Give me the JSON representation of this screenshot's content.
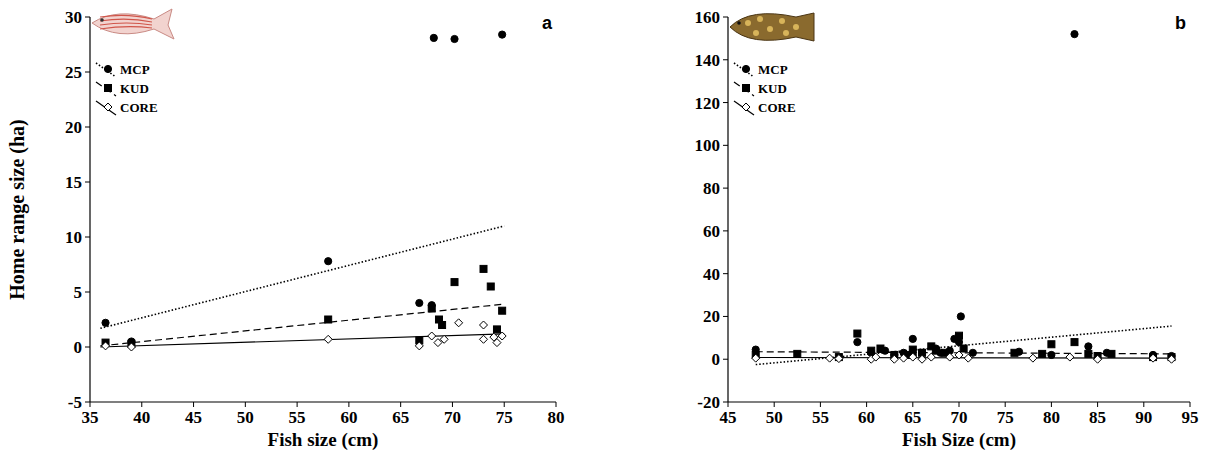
{
  "chart_data": [
    {
      "type": "scatter",
      "title": "a",
      "xlabel": "Fish size (cm)",
      "ylabel": "Home range size (ha)",
      "xlim": [
        35,
        80
      ],
      "xticks": [
        35,
        40,
        45,
        50,
        55,
        60,
        65,
        70,
        75,
        80
      ],
      "ylim": [
        -5,
        30
      ],
      "yticks": [
        -5,
        0,
        5,
        10,
        15,
        20,
        25,
        30
      ],
      "legend": "upper left",
      "series": [
        {
          "name": "MCP",
          "color": "#000000",
          "marker": "circle",
          "line_style": "dotted",
          "x": [
            36.5,
            39,
            58,
            66.8,
            68,
            68.2,
            70.2,
            74.8
          ],
          "values": [
            2.2,
            0.5,
            7.8,
            4.0,
            3.8,
            28.1,
            28.0,
            28.4
          ],
          "trend": {
            "x": [
              36,
              75
            ],
            "values": [
              1.7,
              11.0
            ]
          }
        },
        {
          "name": "KUD",
          "color": "#000000",
          "marker": "square",
          "line_style": "dashed",
          "x": [
            36.5,
            39,
            58,
            66.8,
            68,
            68.7,
            69,
            70.2,
            73,
            73.7,
            74.3,
            74.8
          ],
          "values": [
            0.4,
            0.3,
            2.5,
            0.6,
            3.5,
            2.5,
            2.0,
            5.9,
            7.1,
            5.5,
            1.6,
            3.3
          ],
          "trend": {
            "x": [
              36,
              75
            ],
            "values": [
              0.1,
              3.9
            ]
          }
        },
        {
          "name": "CORE",
          "color": "#000000",
          "marker": "open-diamond",
          "line_style": "solid",
          "x": [
            36.5,
            39,
            58,
            66.8,
            68,
            68.6,
            69.2,
            70.6,
            73,
            73,
            74,
            74.3,
            74.8
          ],
          "values": [
            0.1,
            0.0,
            0.7,
            0.1,
            1.0,
            0.4,
            0.7,
            2.2,
            0.7,
            2.0,
            0.9,
            0.4,
            1.0
          ],
          "trend": {
            "x": [
              36,
              75
            ],
            "values": [
              0.0,
              1.2
            ]
          }
        }
      ]
    },
    {
      "type": "scatter",
      "title": "b",
      "xlabel": "Fish Size (cm)",
      "xlim": [
        45,
        95
      ],
      "xticks": [
        45,
        50,
        55,
        60,
        65,
        70,
        75,
        80,
        85,
        90,
        95
      ],
      "ylim": [
        -20,
        160
      ],
      "yticks": [
        -20,
        0,
        20,
        40,
        60,
        80,
        100,
        120,
        140,
        160
      ],
      "legend": "upper left",
      "series": [
        {
          "name": "MCP",
          "color": "#000000",
          "marker": "circle",
          "line_style": "dotted",
          "x": [
            48,
            59,
            60.5,
            62,
            63,
            64,
            65,
            65,
            66,
            67.5,
            68,
            69,
            69.5,
            70,
            70.2,
            71.5,
            76.5,
            80,
            82.5,
            84,
            86,
            91,
            93
          ],
          "values": [
            4.5,
            8,
            3,
            4,
            2,
            3,
            9.5,
            2,
            3,
            5,
            3,
            4,
            9.5,
            8,
            20,
            3,
            3.5,
            2,
            152,
            6,
            3,
            2,
            1.5
          ],
          "trend": {
            "x": [
              48,
              93
            ],
            "values": [
              -2.5,
              15.5
            ]
          }
        },
        {
          "name": "KUD",
          "color": "#000000",
          "marker": "square",
          "line_style": "dashed",
          "x": [
            48,
            52.5,
            57,
            59,
            60.5,
            61.5,
            63,
            64.5,
            65,
            66,
            67,
            67.5,
            68.5,
            70,
            70.5,
            76,
            79,
            80,
            82.5,
            84,
            85,
            86.5,
            91,
            93
          ],
          "values": [
            2,
            2.5,
            1,
            12,
            4,
            5,
            2,
            2,
            4.5,
            3,
            6,
            4,
            3,
            11,
            5,
            3,
            2.5,
            7,
            8,
            2.5,
            1.5,
            2.5,
            1,
            1
          ],
          "trend": {
            "x": [
              48,
              93
            ],
            "values": [
              3.5,
              2.5
            ]
          }
        },
        {
          "name": "CORE",
          "color": "#000000",
          "marker": "open-diamond",
          "line_style": "solid",
          "x": [
            48,
            56,
            57,
            60.5,
            61,
            63,
            64,
            65,
            66,
            67,
            69,
            70,
            71,
            78,
            82,
            85,
            91,
            93
          ],
          "values": [
            0.5,
            0.5,
            0.3,
            0,
            1,
            0,
            0.5,
            1,
            0,
            1,
            1,
            2,
            0.5,
            0.5,
            1,
            0,
            0.5,
            0
          ],
          "trend": {
            "x": [
              48,
              93
            ],
            "values": [
              0.8,
              0.5
            ]
          }
        }
      ]
    }
  ]
}
